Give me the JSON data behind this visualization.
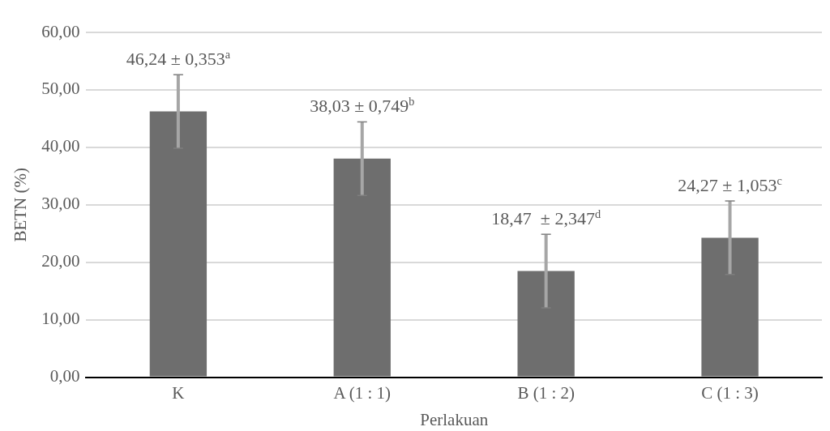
{
  "chart_data": {
    "type": "bar",
    "xlabel": "Perlakuan",
    "ylabel": "BETN (%)",
    "categories": [
      "K",
      "A (1 : 1)",
      "B (1 : 2)",
      "C (1 : 3)"
    ],
    "values": [
      46.24,
      38.03,
      18.47,
      24.27
    ],
    "errors": [
      6.4,
      6.4,
      6.4,
      6.4
    ],
    "color": "#6e6e6e",
    "ylim": [
      0,
      60
    ],
    "yticks": [
      {
        "value": 0,
        "label": "0,00"
      },
      {
        "value": 10,
        "label": "10,00"
      },
      {
        "value": 20,
        "label": "20,00"
      },
      {
        "value": 30,
        "label": "30,00"
      },
      {
        "value": 40,
        "label": "40,00"
      },
      {
        "value": 50,
        "label": "50,00"
      },
      {
        "value": 60,
        "label": "60,00"
      }
    ],
    "grid": "y",
    "annotations": [
      {
        "text": "46,24 ± 0,353$^{a}$",
        "x": "K",
        "y": 46.24
      },
      {
        "text": "38,03 ± 0,749$^{b}$",
        "x": "A (1 : 1)",
        "y": 38.03
      },
      {
        "text": "18,47  ± 2,347$^{d}$",
        "x": "B (1 : 2)",
        "y": 18.47
      },
      {
        "text": "24,27 ± 1,053$^{c}$",
        "x": "C (1 : 3)",
        "y": 24.27
      }
    ]
  }
}
